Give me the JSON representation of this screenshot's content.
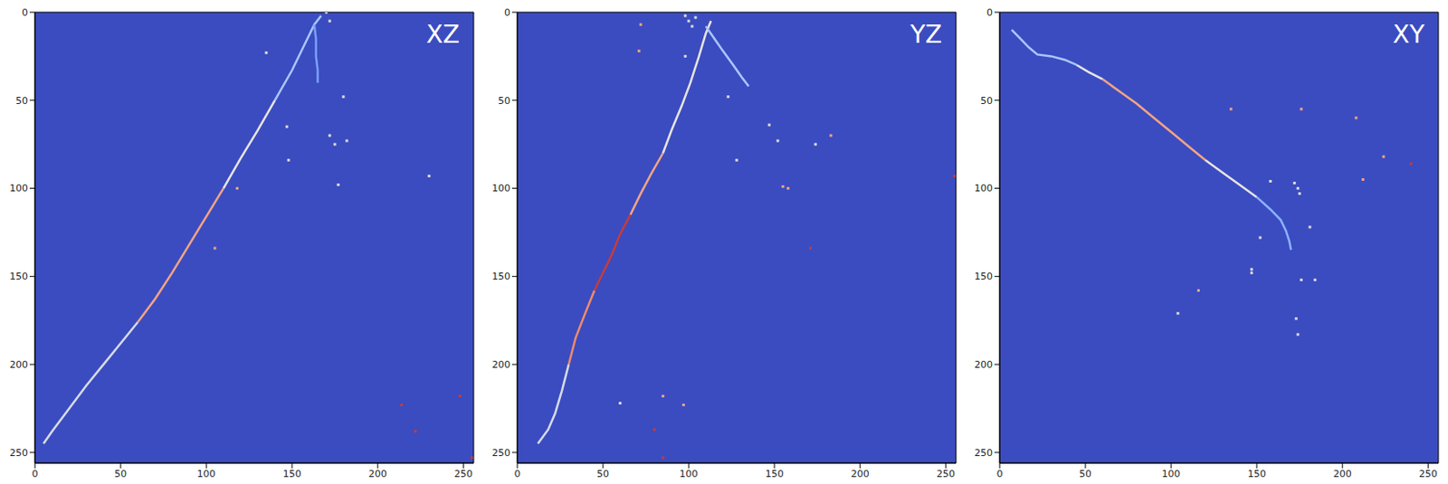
{
  "chart_data": [
    {
      "type": "scatter",
      "title": "XZ",
      "xlim": [
        0,
        256
      ],
      "ylim": [
        256,
        0
      ],
      "xticks": [
        0,
        50,
        100,
        150,
        200,
        250
      ],
      "yticks": [
        0,
        50,
        100,
        150,
        200,
        250
      ],
      "grid": false,
      "series": [
        {
          "color": "#d5dbe8",
          "line_style": "solid",
          "marker": "none",
          "x": [
            5,
            10,
            20,
            30,
            40,
            50,
            60
          ],
          "y": [
            245,
            238,
            225,
            212,
            200,
            188,
            176
          ]
        },
        {
          "color": "#f4a384",
          "line_style": "solid",
          "marker": "none",
          "x": [
            60,
            70,
            80,
            90,
            100,
            110
          ],
          "y": [
            176,
            163,
            148,
            132,
            116,
            100
          ]
        },
        {
          "color": "#e6e4e2",
          "line_style": "solid",
          "marker": "none",
          "x": [
            110,
            120,
            130,
            140
          ],
          "y": [
            100,
            83,
            67,
            50
          ]
        },
        {
          "color": "#a9c6fd",
          "line_style": "solid",
          "marker": "none",
          "x": [
            140,
            150,
            158,
            163,
            167
          ],
          "y": [
            50,
            33,
            17,
            7,
            2
          ]
        },
        {
          "color": "#7b9ff9",
          "line_style": "solid",
          "marker": "none",
          "x": [
            163,
            164,
            164,
            165,
            165
          ],
          "y": [
            7,
            15,
            25,
            33,
            40
          ]
        },
        {
          "color": "#dcdddd",
          "marker": "square",
          "x": [
            170,
            172,
            135,
            180,
            147,
            172,
            175,
            182,
            148,
            177,
            230
          ],
          "y": [
            0,
            5,
            23,
            48,
            65,
            70,
            75,
            73,
            84,
            98,
            93
          ]
        },
        {
          "color": "#f4a384",
          "marker": "square",
          "x": [
            118,
            105
          ],
          "y": [
            100,
            134
          ]
        },
        {
          "color": "#c43c3c",
          "marker": "square",
          "x": [
            214,
            222,
            248,
            255
          ],
          "y": [
            223,
            238,
            218,
            253
          ]
        }
      ]
    },
    {
      "type": "scatter",
      "title": "YZ",
      "xlim": [
        0,
        256
      ],
      "ylim": [
        256,
        0
      ],
      "xticks": [
        0,
        50,
        100,
        150,
        200,
        250
      ],
      "yticks": [
        0,
        50,
        100,
        150,
        200,
        250
      ],
      "grid": false,
      "series": [
        {
          "color": "#d5dbe8",
          "line_style": "solid",
          "marker": "none",
          "x": [
            12,
            18,
            22,
            26,
            30
          ],
          "y": [
            245,
            237,
            228,
            215,
            200
          ]
        },
        {
          "color": "#f08a6c",
          "line_style": "solid",
          "marker": "none",
          "x": [
            30,
            34,
            40,
            45
          ],
          "y": [
            200,
            185,
            170,
            158
          ]
        },
        {
          "color": "#c43c3c",
          "line_style": "solid",
          "marker": "none",
          "x": [
            45,
            50,
            55,
            60,
            66
          ],
          "y": [
            158,
            148,
            138,
            126,
            115
          ]
        },
        {
          "color": "#f4a384",
          "line_style": "solid",
          "marker": "none",
          "x": [
            66,
            72,
            78,
            85
          ],
          "y": [
            115,
            103,
            92,
            80
          ]
        },
        {
          "color": "#e6e4e2",
          "line_style": "solid",
          "marker": "none",
          "x": [
            85,
            90,
            96,
            101,
            106,
            110,
            113
          ],
          "y": [
            80,
            67,
            53,
            40,
            25,
            12,
            5
          ]
        },
        {
          "color": "#a9c6fd",
          "line_style": "solid",
          "marker": "none",
          "x": [
            110,
            115,
            120,
            126,
            131,
            135
          ],
          "y": [
            8,
            15,
            22,
            30,
            37,
            42
          ]
        },
        {
          "color": "#dcdddd",
          "marker": "square",
          "x": [
            98,
            100,
            102,
            104,
            98,
            123,
            147,
            152,
            128,
            174,
            60
          ],
          "y": [
            2,
            5,
            8,
            3,
            25,
            48,
            64,
            73,
            84,
            75,
            222
          ]
        },
        {
          "color": "#f4a384",
          "marker": "square",
          "x": [
            72,
            71,
            183,
            155,
            158,
            85,
            97
          ],
          "y": [
            7,
            22,
            70,
            99,
            100,
            218,
            223
          ]
        },
        {
          "color": "#c43c3c",
          "marker": "square",
          "x": [
            171,
            80,
            85,
            255
          ],
          "y": [
            134,
            237,
            253,
            93
          ]
        }
      ]
    },
    {
      "type": "scatter",
      "title": "XY",
      "xlim": [
        0,
        256
      ],
      "ylim": [
        256,
        0
      ],
      "xticks": [
        0,
        50,
        100,
        150,
        200,
        250
      ],
      "yticks": [
        0,
        50,
        100,
        150,
        200,
        250
      ],
      "grid": false,
      "series": [
        {
          "color": "#a9c6fd",
          "line_style": "solid",
          "marker": "none",
          "x": [
            7,
            12,
            17,
            22,
            30,
            38,
            45
          ],
          "y": [
            10,
            15,
            20,
            24,
            25,
            27,
            30
          ]
        },
        {
          "color": "#e6e4e2",
          "line_style": "solid",
          "marker": "none",
          "x": [
            45,
            52,
            60
          ],
          "y": [
            30,
            34,
            38
          ]
        },
        {
          "color": "#f4a384",
          "line_style": "solid",
          "marker": "none",
          "x": [
            60,
            70,
            80,
            90,
            100,
            110,
            120
          ],
          "y": [
            38,
            45,
            52,
            60,
            68,
            76,
            84
          ]
        },
        {
          "color": "#e6e4e2",
          "line_style": "solid",
          "marker": "none",
          "x": [
            120,
            130,
            140,
            150
          ],
          "y": [
            84,
            91,
            98,
            105
          ]
        },
        {
          "color": "#8db0fe",
          "line_style": "solid",
          "marker": "none",
          "x": [
            150,
            158,
            164,
            167,
            169,
            170
          ],
          "y": [
            105,
            112,
            118,
            124,
            130,
            135
          ]
        },
        {
          "color": "#dcdddd",
          "marker": "square",
          "x": [
            172,
            174,
            175,
            158,
            181,
            152,
            147,
            147,
            176,
            184,
            104,
            173,
            174
          ],
          "y": [
            97,
            100,
            103,
            96,
            122,
            128,
            146,
            148,
            152,
            152,
            171,
            174,
            183
          ]
        },
        {
          "color": "#f4a384",
          "marker": "square",
          "x": [
            135,
            176,
            208,
            224,
            212,
            116
          ],
          "y": [
            55,
            55,
            60,
            82,
            95,
            158
          ]
        },
        {
          "color": "#c43c3c",
          "marker": "square",
          "x": [
            240
          ],
          "y": [
            86
          ]
        }
      ]
    }
  ]
}
